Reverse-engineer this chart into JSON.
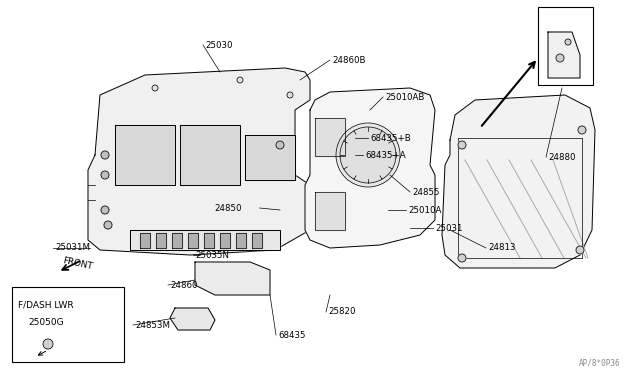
{
  "bg_color": "#ffffff",
  "line_color": "#000000",
  "watermark": "AP/8*0P36",
  "front_label": "FRONT",
  "fdash_label": "F/DASH LWR",
  "fdash_part": "25050G",
  "labels": [
    [
      "25030",
      205,
      45,
      220,
      72,
      "left"
    ],
    [
      "24860B",
      332,
      60,
      300,
      80,
      "left"
    ],
    [
      "25010AB",
      385,
      97,
      370,
      110,
      "left"
    ],
    [
      "68435+B",
      370,
      138,
      355,
      138,
      "left"
    ],
    [
      "68435+A",
      365,
      155,
      355,
      155,
      "left"
    ],
    [
      "24855",
      412,
      192,
      390,
      175,
      "left"
    ],
    [
      "25010A",
      408,
      210,
      388,
      210,
      "left"
    ],
    [
      "25031",
      435,
      228,
      410,
      228,
      "left"
    ],
    [
      "24850",
      242,
      208,
      280,
      210,
      "right"
    ],
    [
      "25031M",
      55,
      248,
      90,
      248,
      "left"
    ],
    [
      "25035N",
      195,
      255,
      200,
      255,
      "left"
    ],
    [
      "24860",
      170,
      285,
      195,
      280,
      "left"
    ],
    [
      "24853M",
      135,
      325,
      175,
      318,
      "left"
    ],
    [
      "68435",
      278,
      335,
      270,
      295,
      "left"
    ],
    [
      "25820",
      328,
      312,
      330,
      295,
      "left"
    ],
    [
      "24813",
      488,
      248,
      450,
      230,
      "left"
    ],
    [
      "24880",
      548,
      157,
      562,
      88,
      "left"
    ]
  ]
}
